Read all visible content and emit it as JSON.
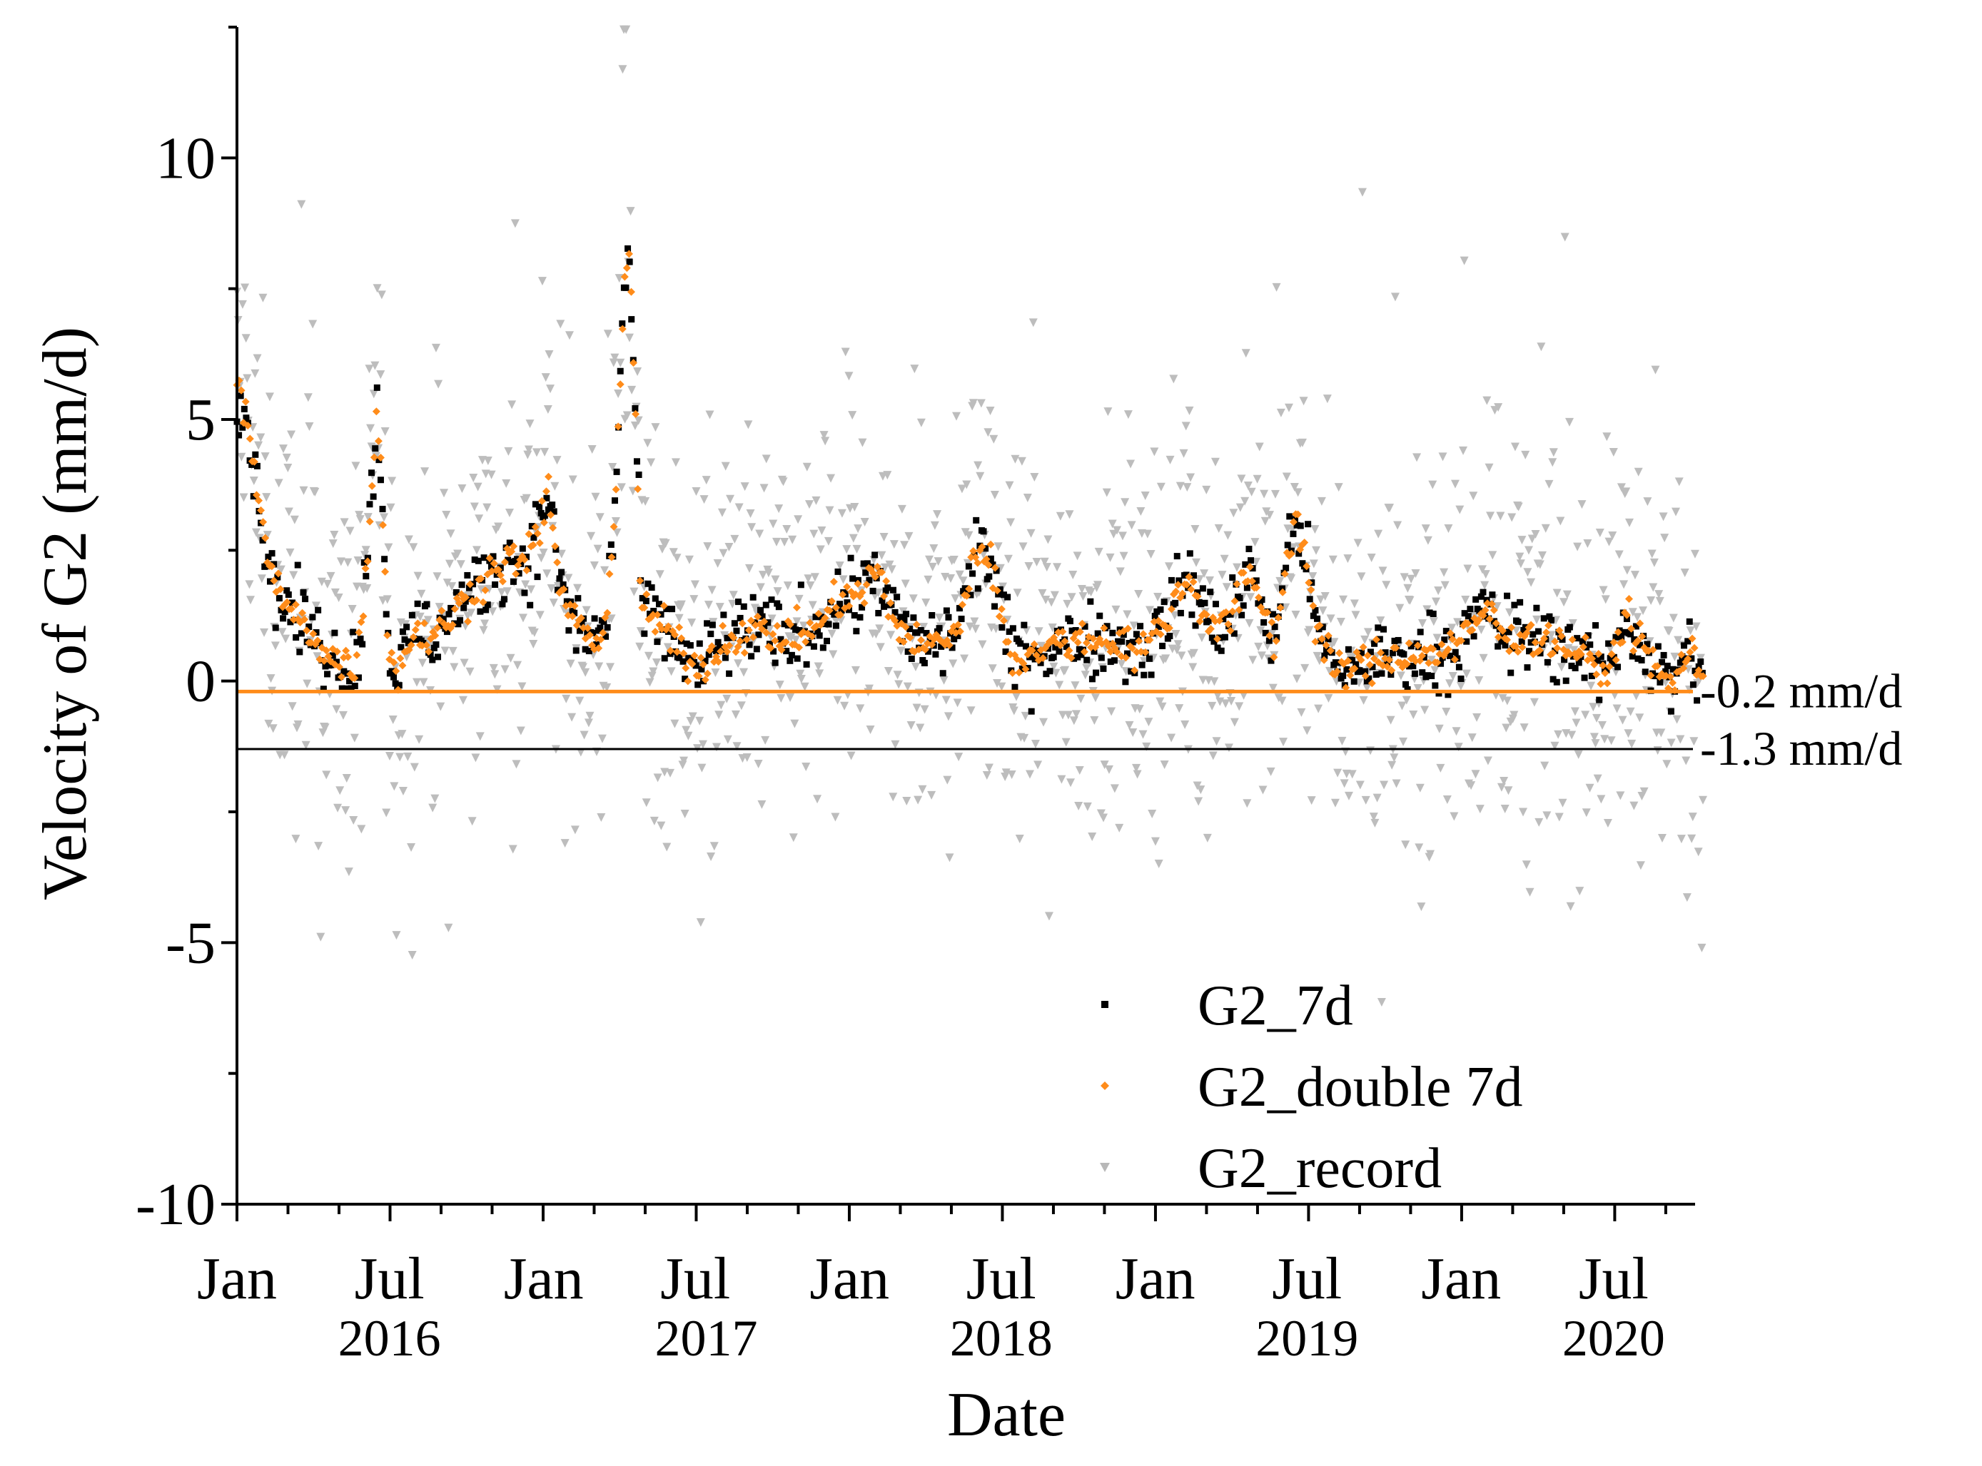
{
  "chart_data": {
    "type": "scatter",
    "title": "",
    "xlabel": "Date",
    "ylabel": "Velocity of G2 (mm/d)",
    "xlim_days_from_2016_01_01": [
      0,
      1756
    ],
    "ylim": [
      -10,
      12.5
    ],
    "y_ticks": [
      {
        "value": 10,
        "label": "10"
      },
      {
        "value": 5,
        "label": "5"
      },
      {
        "value": 0,
        "label": "0"
      },
      {
        "value": -5,
        "label": "-5"
      },
      {
        "value": -10,
        "label": "-10"
      }
    ],
    "x_major_ticks": [
      {
        "day": 0,
        "label": "Jan"
      },
      {
        "day": 182,
        "label": "Jul"
      },
      {
        "day": 366,
        "label": "Jan"
      },
      {
        "day": 547,
        "label": "Jul"
      },
      {
        "day": 731,
        "label": "Jan"
      },
      {
        "day": 912,
        "label": "Jul"
      },
      {
        "day": 1096,
        "label": "Jan"
      },
      {
        "day": 1277,
        "label": "Jul"
      },
      {
        "day": 1461,
        "label": "Jan"
      },
      {
        "day": 1643,
        "label": "Jul"
      }
    ],
    "x_year_labels": [
      {
        "day": 182,
        "label": "2016"
      },
      {
        "day": 560,
        "label": "2017"
      },
      {
        "day": 912,
        "label": "2018"
      },
      {
        "day": 1277,
        "label": "2019"
      },
      {
        "day": 1643,
        "label": "2020"
      }
    ],
    "reference_lines": [
      {
        "value": -0.2,
        "label": "-0.2 mm/d",
        "color": "#ff8c1a"
      },
      {
        "value": -1.3,
        "label": "-1.3 mm/d",
        "color": "#000000"
      }
    ],
    "legend": {
      "position": "lower-right",
      "entries": [
        {
          "name": "G2_7d",
          "marker": "square",
          "color": "#000000"
        },
        {
          "name": "G2_double 7d",
          "marker": "diamond",
          "color": "#ff8c1a"
        },
        {
          "name": "G2_record",
          "marker": "triangle-down",
          "color": "#b8b8b8"
        }
      ]
    },
    "series_trend": {
      "description": "Smoothed velocity trend (mm/d) vs days since 2016-01-01; G2_7d and G2_double 7d scatter around it, G2_record scatters widely",
      "x": [
        0,
        10,
        25,
        40,
        60,
        90,
        115,
        140,
        150,
        160,
        167,
        172,
        180,
        190,
        200,
        215,
        230,
        260,
        290,
        320,
        345,
        360,
        372,
        385,
        400,
        420,
        440,
        450,
        462,
        468,
        475,
        482,
        495,
        515,
        535,
        550,
        570,
        610,
        650,
        690,
        720,
        745,
        760,
        790,
        820,
        860,
        880,
        890,
        900,
        925,
        960,
        1000,
        1040,
        1080,
        1110,
        1135,
        1150,
        1165,
        1185,
        1210,
        1238,
        1250,
        1265,
        1275,
        1290,
        1310,
        1340,
        1380,
        1420,
        1460,
        1490,
        1510,
        1560,
        1600,
        1625,
        1640,
        1655,
        1670,
        1690,
        1712,
        1720,
        1735,
        1750
      ],
      "y": [
        5.5,
        5.2,
        3.6,
        2.0,
        1.4,
        0.9,
        0.4,
        0.3,
        1.2,
        3.5,
        5.3,
        4.0,
        0.8,
        0.1,
        0.5,
        1.0,
        0.8,
        1.3,
        1.9,
        2.3,
        2.3,
        2.8,
        3.7,
        1.8,
        1.2,
        0.8,
        1.0,
        3.0,
        7.5,
        8.0,
        5.5,
        1.5,
        1.2,
        0.9,
        0.5,
        0.2,
        0.6,
        1.0,
        0.8,
        1.0,
        1.6,
        1.6,
        2.2,
        1.0,
        0.6,
        1.0,
        2.3,
        2.7,
        2.2,
        0.4,
        0.6,
        0.8,
        0.8,
        0.6,
        1.2,
        2.0,
        1.5,
        1.0,
        1.2,
        2.1,
        0.7,
        2.0,
        3.3,
        2.3,
        0.9,
        0.2,
        0.3,
        0.5,
        0.5,
        0.7,
        1.4,
        0.9,
        0.8,
        0.6,
        0.2,
        0.3,
        1.2,
        0.9,
        0.3,
        -0.1,
        0.3,
        0.5,
        0.1
      ]
    }
  }
}
